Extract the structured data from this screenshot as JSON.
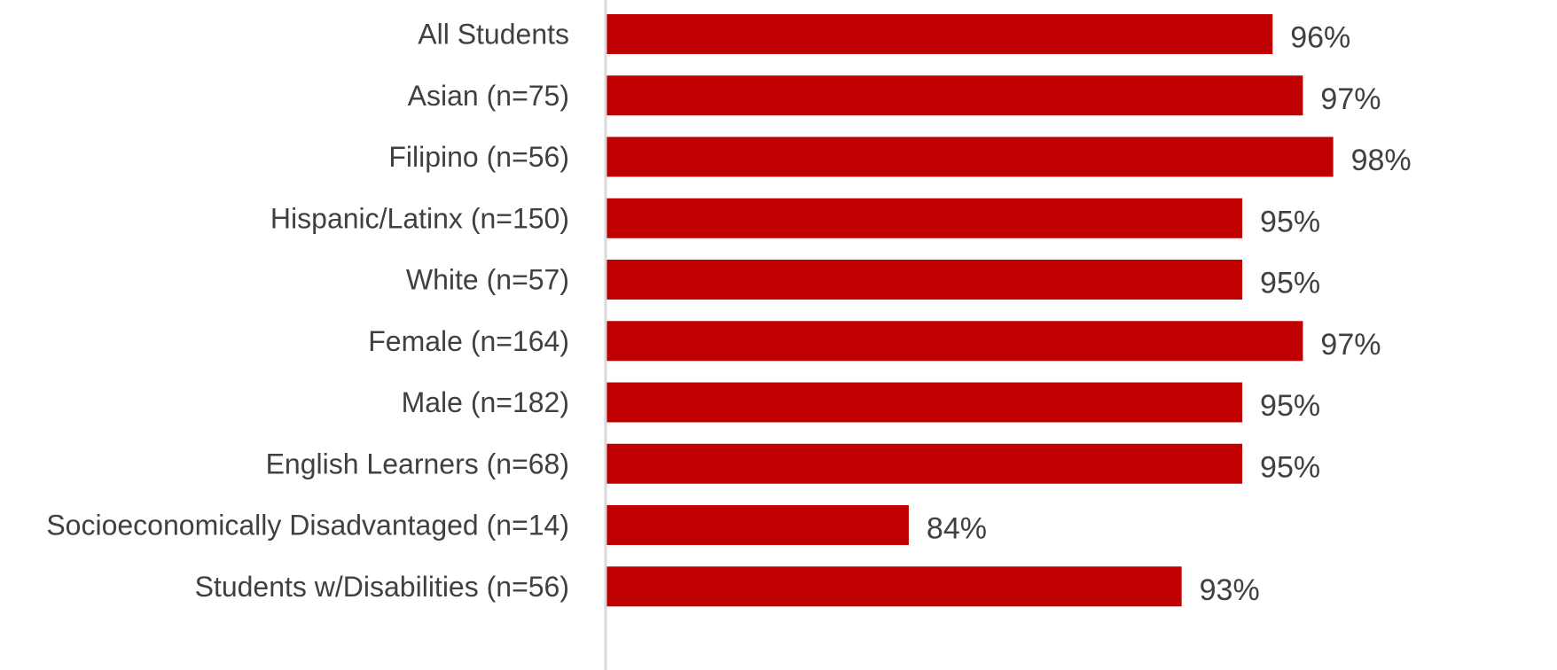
{
  "chart_data": {
    "type": "bar",
    "orientation": "horizontal",
    "categories": [
      "All Students",
      "Asian (n=75)",
      "Filipino (n=56)",
      "Hispanic/Latinx (n=150)",
      "White (n=57)",
      "Female (n=164)",
      "Male (n=182)",
      "English Learners (n=68)",
      "Socioeconomically Disadvantaged (n=14)",
      "Students w/Disabilities (n=56)"
    ],
    "values": [
      96,
      97,
      98,
      95,
      95,
      97,
      95,
      95,
      84,
      93
    ],
    "value_labels": [
      "96%",
      "97%",
      "98%",
      "95%",
      "95%",
      "97%",
      "95%",
      "95%",
      "84%",
      "93%"
    ],
    "value_unit": "%",
    "xlim": [
      74,
      100
    ],
    "title": "",
    "xlabel": "",
    "ylabel": "",
    "grid": false,
    "legend": "none",
    "bar_color": "#C00000",
    "axis_color": "#D9D9D9",
    "text_color": "#404040"
  }
}
